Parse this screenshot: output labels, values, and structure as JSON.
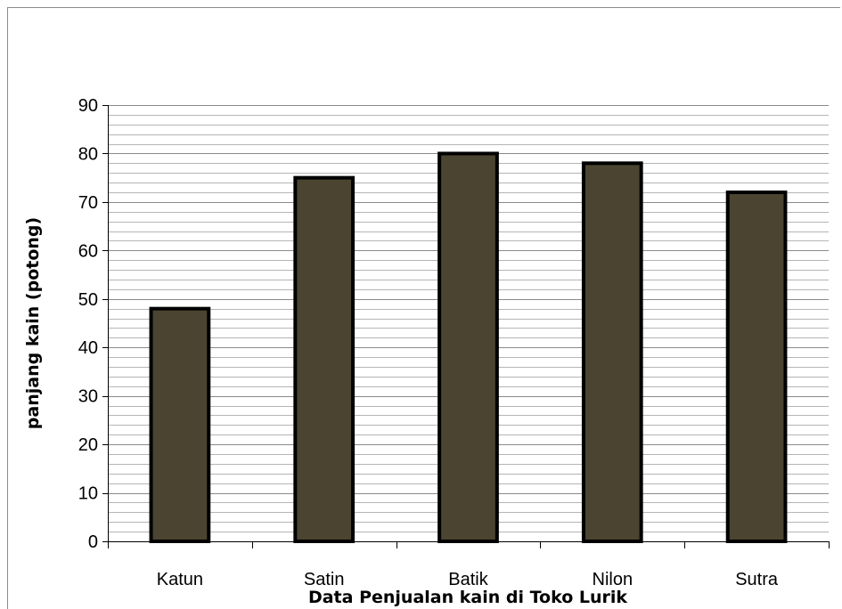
{
  "chart_data": {
    "type": "bar",
    "title": "",
    "xlabel": "Data Penjualan kain di Toko Lurik",
    "ylabel": "panjang kain (potong)",
    "categories": [
      "Katun",
      "Satin",
      "Batik",
      "Nilon",
      "Sutra"
    ],
    "values": [
      48,
      75,
      80,
      78,
      72
    ],
    "ylim": [
      0,
      90
    ],
    "yticks": [
      0,
      10,
      20,
      30,
      40,
      50,
      60,
      70,
      80,
      90
    ],
    "grid": true,
    "legend": "none",
    "colors": {
      "bar_fill": "#4b4430",
      "bar_stroke": "#000000",
      "major_grid": "#8a8a8a",
      "minor_grid": "#b5b5b5"
    }
  }
}
